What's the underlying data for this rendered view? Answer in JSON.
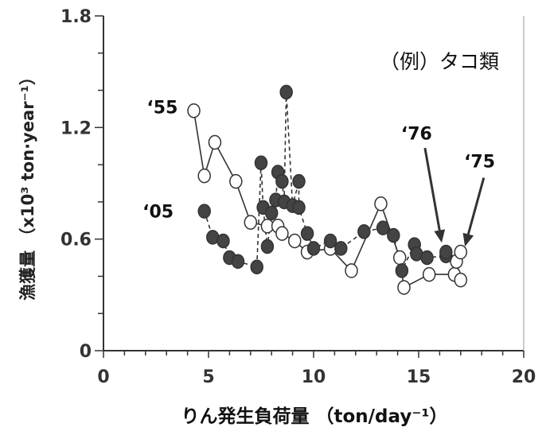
{
  "chart_data": {
    "type": "scatter",
    "subtitle": "（例）タコ類",
    "xlabel": "りん発生負荷量 （ton/day⁻¹）",
    "ylabel": "漁獲量 （x10³ ton·year⁻¹）",
    "xlim": [
      0,
      20
    ],
    "ylim": [
      0,
      1.8
    ],
    "x_ticks": [
      0,
      5,
      10,
      15,
      20
    ],
    "x_tick_labels": [
      "0",
      "5",
      "10",
      "15",
      "20"
    ],
    "y_ticks": [
      0,
      0.6,
      1.2,
      1.8
    ],
    "y_tick_labels": [
      "0",
      "0.6",
      "1.2",
      "1.8"
    ],
    "grid": false,
    "series": [
      {
        "marker": "open-circle",
        "line": "solid",
        "color": "#333333",
        "points": [
          [
            4.3,
            1.29
          ],
          [
            4.8,
            0.94
          ],
          [
            5.3,
            1.12
          ],
          [
            6.3,
            0.91
          ],
          [
            7.0,
            0.69
          ],
          [
            7.8,
            0.67
          ],
          [
            8.3,
            0.67
          ],
          [
            8.5,
            0.63
          ],
          [
            9.1,
            0.59
          ],
          [
            9.7,
            0.53
          ],
          [
            10.8,
            0.55
          ],
          [
            11.8,
            0.43
          ],
          [
            13.2,
            0.79
          ],
          [
            14.1,
            0.5
          ],
          [
            14.3,
            0.34
          ],
          [
            15.5,
            0.41
          ],
          [
            16.7,
            0.41
          ],
          [
            17.0,
            0.38
          ],
          [
            16.8,
            0.48
          ],
          [
            17.0,
            0.53
          ]
        ]
      },
      {
        "marker": "filled-circle",
        "line": "dashed",
        "color": "#333333",
        "points": [
          [
            4.8,
            0.75
          ],
          [
            5.2,
            0.61
          ],
          [
            5.7,
            0.59
          ],
          [
            6.0,
            0.5
          ],
          [
            6.4,
            0.48
          ],
          [
            7.3,
            0.45
          ],
          [
            7.5,
            1.01
          ],
          [
            7.6,
            0.77
          ],
          [
            7.8,
            0.56
          ],
          [
            8.0,
            0.74
          ],
          [
            8.2,
            0.81
          ],
          [
            8.3,
            0.96
          ],
          [
            8.5,
            0.91
          ],
          [
            8.6,
            0.8
          ],
          [
            8.7,
            1.39
          ],
          [
            9.0,
            0.78
          ],
          [
            9.3,
            0.91
          ],
          [
            9.3,
            0.77
          ],
          [
            9.7,
            0.63
          ],
          [
            10.0,
            0.55
          ],
          [
            10.8,
            0.59
          ],
          [
            11.3,
            0.55
          ],
          [
            12.4,
            0.64
          ],
          [
            13.3,
            0.66
          ],
          [
            13.8,
            0.62
          ],
          [
            14.2,
            0.43
          ],
          [
            14.8,
            0.57
          ],
          [
            14.9,
            0.52
          ],
          [
            15.4,
            0.5
          ],
          [
            16.3,
            0.51
          ],
          [
            16.3,
            0.53
          ]
        ]
      }
    ],
    "annotations": [
      {
        "text": "‘55",
        "x": 2.8,
        "y": 1.31
      },
      {
        "text": "‘05",
        "x": 2.6,
        "y": 0.75
      },
      {
        "text": "‘76",
        "x": 14.9,
        "y": 1.17
      },
      {
        "text": "‘75",
        "x": 17.9,
        "y": 1.02
      }
    ],
    "arrows": [
      {
        "from": [
          15.3,
          1.09
        ],
        "to": [
          16.1,
          0.58
        ]
      },
      {
        "from": [
          18.1,
          0.93
        ],
        "to": [
          17.2,
          0.56
        ]
      }
    ]
  }
}
